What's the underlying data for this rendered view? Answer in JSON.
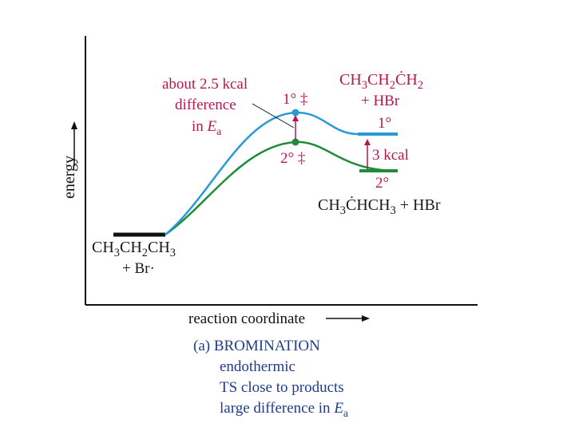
{
  "axes": {
    "y_label": "energy",
    "x_label": "reaction coordinate"
  },
  "annotations": {
    "difference_line1": "about 2.5 kcal",
    "difference_line2": "difference",
    "difference_line3_prefix": "in ",
    "difference_line3_var": "E",
    "difference_line3_sub": "a",
    "ts_primary": "1° ‡",
    "ts_secondary": "2° ‡",
    "product_gap": "3 kcal"
  },
  "reactant": {
    "formula": {
      "a": "CH",
      "s1": "3",
      "b": "CH",
      "s2": "2",
      "c": "CH",
      "s3": "3"
    },
    "line2": "+ Br·"
  },
  "primary_product": {
    "formula": {
      "a": "CH",
      "s1": "3",
      "b": "CH",
      "s2": "2",
      "c": "ĊH",
      "s3": "2"
    },
    "line2": "+ HBr",
    "label": "1°"
  },
  "secondary_product": {
    "label": "2°",
    "formula": {
      "a": "CH",
      "s1": "3",
      "b": "ĊHCH",
      "s2": "3",
      "tail": " + HBr"
    }
  },
  "caption": {
    "title": "(a) BROMINATION",
    "line1": "endothermic",
    "line2": "TS close to products",
    "line3_prefix": "large difference in ",
    "line3_var": "E",
    "line3_sub": "a"
  },
  "colors": {
    "primary_curve": "#2a9ad6",
    "secondary_curve": "#1f8c3a",
    "annotation": "#b5174e",
    "caption": "#1f3d8a",
    "axes": "#111111"
  }
}
